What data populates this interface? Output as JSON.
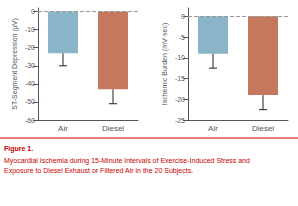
{
  "chart_data": [
    {
      "type": "bar",
      "ylabel": "ST-Segment Depression (μV)",
      "categories": [
        "Air",
        "Diesel"
      ],
      "values": [
        -23,
        -43
      ],
      "error_bars": [
        7,
        8
      ],
      "error_bar_color": "#222222",
      "colors": [
        "#8ab5c9",
        "#c4785e"
      ],
      "ylim": [
        -60,
        2
      ],
      "yticks": [
        0,
        -10,
        -20,
        -30,
        -40,
        -50,
        -60
      ],
      "grid": false,
      "reference_line": {
        "y": 0,
        "line_style": "dashed",
        "color": "#999999"
      }
    },
    {
      "type": "bar",
      "ylabel": "Ischemic Burden (mV·sec)",
      "categories": [
        "Air",
        "Diesel"
      ],
      "values": [
        -9,
        -19
      ],
      "error_bars": [
        3.5,
        3.5
      ],
      "error_bar_color": "#222222",
      "colors": [
        "#8ab5c9",
        "#c4785e"
      ],
      "ylim": [
        -25,
        2
      ],
      "yticks": [
        0,
        -5,
        -10,
        -15,
        -20,
        -25
      ],
      "grid": false,
      "reference_line": {
        "y": 0,
        "line_style": "dashed",
        "color": "#999999"
      }
    }
  ],
  "annotations": [
    {
      "text": "Figure 1.",
      "color": "#cc0000"
    },
    {
      "text": "Myocardial Ischemia during 15-Minute Intervals of Exercise-Induced Stress and\nExposure to Diesel Exhaust or Filtered Air in the 20 Subjects.",
      "color": "#cc0000"
    }
  ]
}
